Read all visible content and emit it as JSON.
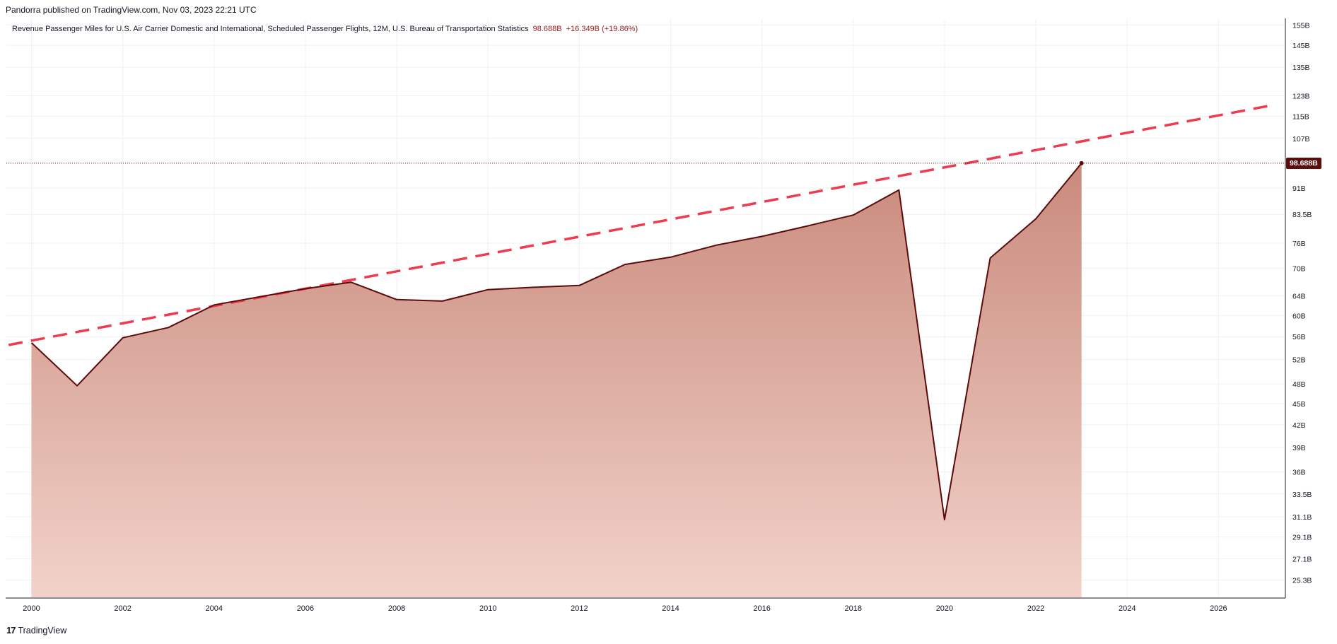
{
  "header": {
    "published": "Pandorra published on TradingView.com, Nov 03, 2023 22:21 UTC"
  },
  "legend": {
    "title": "Revenue Passenger Miles for U.S. Air Carrier Domestic and International, Scheduled Passenger Flights, 12M, U.S. Bureau of Transportation Statistics",
    "last_value": "98.688B",
    "change": "+16.349B (+19.86%)"
  },
  "price_tag": "98.688B",
  "footer": {
    "logo": "17",
    "brand": "TradingView"
  },
  "colors": {
    "line": "#5c0a0a",
    "fill_top": "#c98a7c",
    "fill_bottom": "#f2d2ca",
    "trend": "#ef3b4f",
    "grid": "#f0f1f3"
  },
  "chart_data": {
    "type": "area",
    "scale": "log",
    "x": [
      2000,
      2001,
      2002,
      2003,
      2004,
      2005,
      2006,
      2007,
      2008,
      2009,
      2010,
      2011,
      2012,
      2013,
      2014,
      2015,
      2016,
      2017,
      2018,
      2019,
      2020,
      2021,
      2022,
      2023
    ],
    "series": [
      {
        "values": [
          54.9,
          47.7,
          55.8,
          57.7,
          62.1,
          63.8,
          65.5,
          66.9,
          63.2,
          62.9,
          65.3,
          65.8,
          66.2,
          70.9,
          72.6,
          75.5,
          77.7,
          80.4,
          83.3,
          90.4,
          30.8,
          72.4,
          82.3,
          98.688
        ]
      }
    ],
    "trendline": {
      "from": {
        "x": 1999.5,
        "y": 54.5
      },
      "to": {
        "x": 2027.1,
        "y": 119.0
      },
      "style": "dashed"
    },
    "ylim": [
      23.9,
      158
    ],
    "xlim": [
      1999.45,
      2027.45
    ],
    "y_ticks": [
      {
        "value": 155,
        "label": "155B"
      },
      {
        "value": 145,
        "label": "145B"
      },
      {
        "value": 135,
        "label": "135B"
      },
      {
        "value": 123,
        "label": "123B"
      },
      {
        "value": 115,
        "label": "115B"
      },
      {
        "value": 107,
        "label": "107B"
      },
      {
        "value": 91,
        "label": "91B"
      },
      {
        "value": 83.5,
        "label": "83.5B"
      },
      {
        "value": 76,
        "label": "76B"
      },
      {
        "value": 70,
        "label": "70B"
      },
      {
        "value": 64,
        "label": "64B"
      },
      {
        "value": 60,
        "label": "60B"
      },
      {
        "value": 56,
        "label": "56B"
      },
      {
        "value": 52,
        "label": "52B"
      },
      {
        "value": 48,
        "label": "48B"
      },
      {
        "value": 45,
        "label": "45B"
      },
      {
        "value": 42,
        "label": "42B"
      },
      {
        "value": 39,
        "label": "39B"
      },
      {
        "value": 36,
        "label": "36B"
      },
      {
        "value": 33.5,
        "label": "33.5B"
      },
      {
        "value": 31.1,
        "label": "31.1B"
      },
      {
        "value": 29.1,
        "label": "29.1B"
      },
      {
        "value": 27.1,
        "label": "27.1B"
      },
      {
        "value": 25.3,
        "label": "25.3B"
      }
    ],
    "x_ticks": [
      {
        "value": 2000,
        "label": "2000"
      },
      {
        "value": 2002,
        "label": "2002"
      },
      {
        "value": 2004,
        "label": "2004"
      },
      {
        "value": 2006,
        "label": "2006"
      },
      {
        "value": 2008,
        "label": "2008"
      },
      {
        "value": 2010,
        "label": "2010"
      },
      {
        "value": 2012,
        "label": "2012"
      },
      {
        "value": 2014,
        "label": "2014"
      },
      {
        "value": 2016,
        "label": "2016"
      },
      {
        "value": 2018,
        "label": "2018"
      },
      {
        "value": 2020,
        "label": "2020"
      },
      {
        "value": 2022,
        "label": "2022"
      },
      {
        "value": 2024,
        "label": "2024"
      },
      {
        "value": 2026,
        "label": "2026"
      }
    ],
    "grid": true,
    "last_value": 98.688
  }
}
